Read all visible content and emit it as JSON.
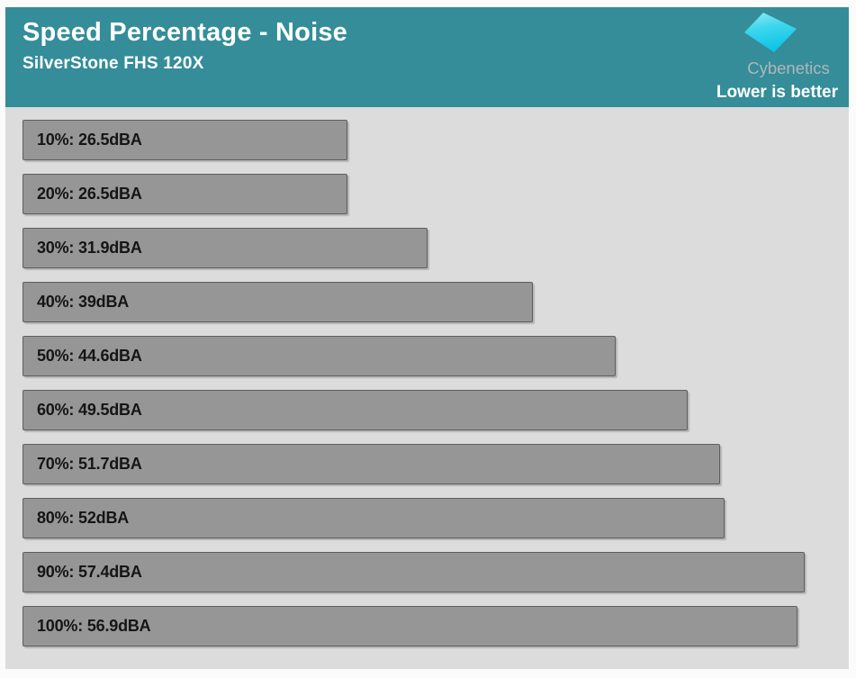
{
  "header": {
    "title": "Speed Percentage - Noise",
    "subtitle": "SilverStone FHS 120X",
    "note": "Lower is better",
    "logo_text": "Cybenetics",
    "bg_color": "#348d99",
    "text_color": "#ffffff",
    "logo_text_color": "#b2b6b8",
    "logo_gradient_top": "#8feaf3",
    "logo_gradient_bottom": "#0fc4e6"
  },
  "chart_data": {
    "type": "bar",
    "orientation": "horizontal",
    "title": "Speed Percentage - Noise",
    "subtitle": "SilverStone FHS 120X",
    "annotation": "Lower is better",
    "unit": "dBA",
    "categories": [
      "10%",
      "20%",
      "30%",
      "40%",
      "50%",
      "60%",
      "70%",
      "80%",
      "90%",
      "100%"
    ],
    "values": [
      26.5,
      26.5,
      31.9,
      39,
      44.6,
      49.5,
      51.7,
      52,
      57.4,
      56.9
    ],
    "labels": [
      "10%: 26.5dBA",
      "20%: 26.5dBA",
      "30%: 31.9dBA",
      "40%: 39dBA",
      "50%: 44.6dBA",
      "60%: 49.5dBA",
      "70%: 51.7dBA",
      "80%: 52dBA",
      "90%: 57.4dBA",
      "100%: 56.9dBA"
    ],
    "axis_min": 4.5,
    "axis_max": 57.4,
    "grid": false,
    "legend": false,
    "plot_bg": "#dcdcdc",
    "bar_color": "#969696",
    "bar_border_color": "#5e5e5e",
    "label_color": "#151515"
  }
}
